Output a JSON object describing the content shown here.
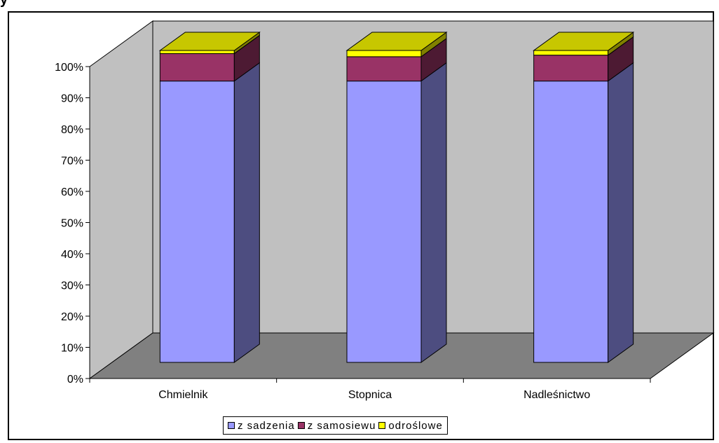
{
  "page": {
    "title": "y"
  },
  "chart_data": {
    "type": "bar",
    "stacked": "percent",
    "three_d": true,
    "categories": [
      "Chmielnik",
      "Stopnica",
      "Nadleśnictwo"
    ],
    "series": [
      {
        "name": "z sadzenia",
        "values": [
          90.2,
          90.2,
          90.2
        ],
        "color": "#9999ff"
      },
      {
        "name": "z samosiewu",
        "values": [
          8.8,
          7.8,
          8.3
        ],
        "color": "#993366"
      },
      {
        "name": "odroślowe",
        "values": [
          1.0,
          2.0,
          1.5
        ],
        "color": "#ffff00"
      }
    ],
    "y_ticks": [
      "0%",
      "10%",
      "20%",
      "30%",
      "40%",
      "50%",
      "60%",
      "70%",
      "80%",
      "90%",
      "100%"
    ],
    "ylim": [
      0,
      100
    ],
    "wall_color": "#c0c0c0",
    "floor_color": "#808080",
    "legend_position": "bottom"
  }
}
